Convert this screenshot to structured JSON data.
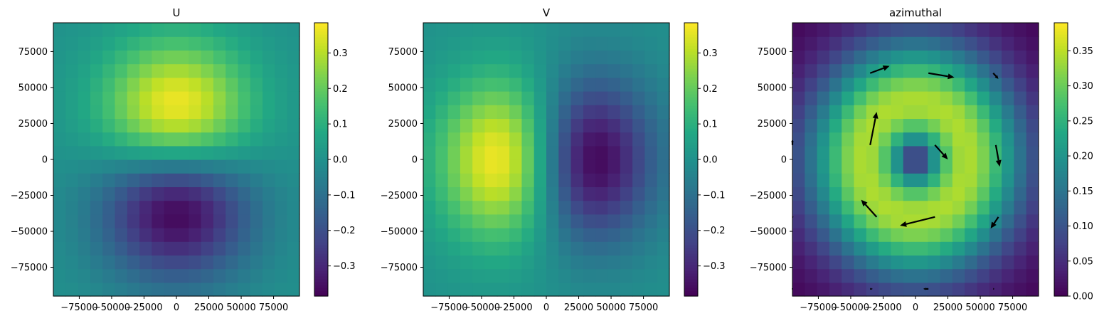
{
  "chart_data": [
    {
      "type": "heatmap",
      "title": "U",
      "field": "U",
      "grid_size": 20,
      "xlim": [
        -95000,
        95000
      ],
      "ylim": [
        -95000,
        95000
      ],
      "x_ticks": [
        -75000,
        -50000,
        -25000,
        0,
        25000,
        50000,
        75000
      ],
      "x_tick_labels": [
        "−75000",
        "−50000",
        "−25000",
        "0",
        "25000",
        "50000",
        "75000"
      ],
      "y_ticks": [
        75000,
        50000,
        25000,
        0,
        -25000,
        -50000,
        -75000
      ],
      "y_tick_labels": [
        "75000",
        "50000",
        "25000",
        "0",
        "−25000",
        "−50000",
        "−75000"
      ],
      "colormap": "viridis",
      "clim": [
        -0.385,
        0.385
      ],
      "colorbar_ticks": [
        0.3,
        0.2,
        0.1,
        0.0,
        -0.1,
        -0.2,
        -0.3
      ],
      "colorbar_tick_labels": [
        "0.3",
        "0.2",
        "0.1",
        "0.0",
        "−0.1",
        "−0.2",
        "−0.3"
      ],
      "legend": "none",
      "grid": false
    },
    {
      "type": "heatmap",
      "title": "V",
      "field": "V",
      "grid_size": 20,
      "xlim": [
        -95000,
        95000
      ],
      "ylim": [
        -95000,
        95000
      ],
      "x_ticks": [
        -75000,
        -50000,
        -25000,
        0,
        25000,
        50000,
        75000
      ],
      "x_tick_labels": [
        "−75000",
        "−50000",
        "−25000",
        "0",
        "25000",
        "50000",
        "75000"
      ],
      "y_ticks": [
        75000,
        50000,
        25000,
        0,
        -25000,
        -50000,
        -75000
      ],
      "y_tick_labels": [
        "75000",
        "50000",
        "25000",
        "0",
        "−25000",
        "−50000",
        "−75000"
      ],
      "colormap": "viridis",
      "clim": [
        -0.385,
        0.385
      ],
      "colorbar_ticks": [
        0.3,
        0.2,
        0.1,
        0.0,
        -0.1,
        -0.2,
        -0.3
      ],
      "colorbar_tick_labels": [
        "0.3",
        "0.2",
        "0.1",
        "0.0",
        "−0.1",
        "−0.2",
        "−0.3"
      ],
      "legend": "none",
      "grid": false
    },
    {
      "type": "heatmap",
      "title": "azimuthal",
      "field": "azimuthal",
      "grid_size": 20,
      "xlim": [
        -95000,
        95000
      ],
      "ylim": [
        -95000,
        95000
      ],
      "x_ticks": [
        -75000,
        -50000,
        -25000,
        0,
        25000,
        50000,
        75000
      ],
      "x_tick_labels": [
        "−75000",
        "−50000",
        "−25000",
        "0",
        "25000",
        "50000",
        "75000"
      ],
      "y_ticks": [
        75000,
        50000,
        25000,
        0,
        -25000,
        -50000,
        -75000
      ],
      "y_tick_labels": [
        "75000",
        "50000",
        "25000",
        "0",
        "−25000",
        "−50000",
        "−75000"
      ],
      "colormap": "viridis",
      "clim": [
        0,
        0.39
      ],
      "colorbar_ticks": [
        0.35,
        0.3,
        0.25,
        0.2,
        0.15,
        0.1,
        0.05,
        0.0
      ],
      "colorbar_tick_labels": [
        "0.35",
        "0.30",
        "0.25",
        "0.20",
        "0.15",
        "0.10",
        "0.05",
        "0.00"
      ],
      "legend": "none",
      "grid": false,
      "quiver": [
        {
          "x": -35000,
          "y": 60000,
          "dx": 15000,
          "dy": 5000
        },
        {
          "x": 10000,
          "y": 60000,
          "dx": 20000,
          "dy": -3000
        },
        {
          "x": 60000,
          "y": 60000,
          "dx": 4000,
          "dy": -4000
        },
        {
          "x": -35000,
          "y": 10000,
          "dx": 5000,
          "dy": 23000
        },
        {
          "x": 15000,
          "y": 10000,
          "dx": 10000,
          "dy": -10000
        },
        {
          "x": 62000,
          "y": 10000,
          "dx": 3000,
          "dy": -15000
        },
        {
          "x": -30000,
          "y": -40000,
          "dx": -12000,
          "dy": 12000
        },
        {
          "x": 15000,
          "y": -40000,
          "dx": -27000,
          "dy": -6000
        },
        {
          "x": 64000,
          "y": -40000,
          "dx": -6000,
          "dy": -8000
        },
        {
          "x": -95000,
          "y": 60000,
          "dx": 1000,
          "dy": 0
        },
        {
          "x": -95000,
          "y": 10000,
          "dx": 0,
          "dy": 4000
        },
        {
          "x": -95000,
          "y": -40000,
          "dx": 1000,
          "dy": 0
        },
        {
          "x": -35000,
          "y": -90000,
          "dx": 2000,
          "dy": 0
        },
        {
          "x": 10000,
          "y": -90000,
          "dx": -4000,
          "dy": 0
        },
        {
          "x": 60000,
          "y": -90000,
          "dx": 1000,
          "dy": 0
        },
        {
          "x": -95000,
          "y": -90000,
          "dx": 0,
          "dy": 0
        }
      ]
    }
  ]
}
